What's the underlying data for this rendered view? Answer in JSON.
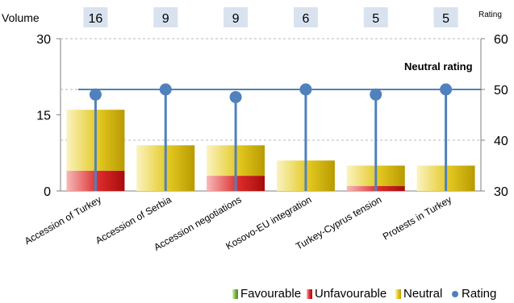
{
  "chart_data": {
    "type": "bar",
    "categories": [
      "Accession of Turkey",
      "Accession of Serbia",
      "Accession negotiations",
      "Kosovo-EU integration",
      "Turkey-Cyprus tension",
      "Protests in Turkey"
    ],
    "volume_label": "Volume",
    "rating_label": "Rating",
    "volume_values": [
      "16",
      "9",
      "9",
      "6",
      "5",
      "5"
    ],
    "series": [
      {
        "name": "Favourable",
        "type": "stacked-bar",
        "axis": "left",
        "values": [
          0,
          0,
          0,
          0,
          0,
          0
        ],
        "color": "#7ab648"
      },
      {
        "name": "Unfavourable",
        "type": "stacked-bar",
        "axis": "left",
        "values": [
          4,
          0,
          3,
          0,
          1,
          0
        ],
        "color": "#c8102e"
      },
      {
        "name": "Neutral",
        "type": "stacked-bar",
        "axis": "left",
        "values": [
          12,
          9,
          6,
          6,
          4,
          5
        ],
        "color": "#d4b800"
      },
      {
        "name": "Rating",
        "type": "dot",
        "axis": "right",
        "values": [
          49,
          50,
          48.5,
          50,
          49,
          50
        ],
        "color": "#4f81bd"
      }
    ],
    "reference_line": {
      "label": "Neutral rating",
      "value": 50,
      "axis": "right",
      "color": "#4f81bd"
    },
    "y_left": {
      "range": [
        0,
        30
      ],
      "ticks": [
        "0",
        "15",
        "30"
      ],
      "tick_values": [
        0,
        15,
        30
      ]
    },
    "y_right": {
      "range": [
        30,
        60
      ],
      "ticks": [
        "30",
        "40",
        "50",
        "60"
      ],
      "tick_values": [
        30,
        40,
        50,
        60
      ]
    },
    "grid": "dashed-horizontal",
    "legend": [
      "Favourable",
      "Unfavourable",
      "Neutral",
      "Rating"
    ],
    "legend_position": "bottom-right"
  }
}
